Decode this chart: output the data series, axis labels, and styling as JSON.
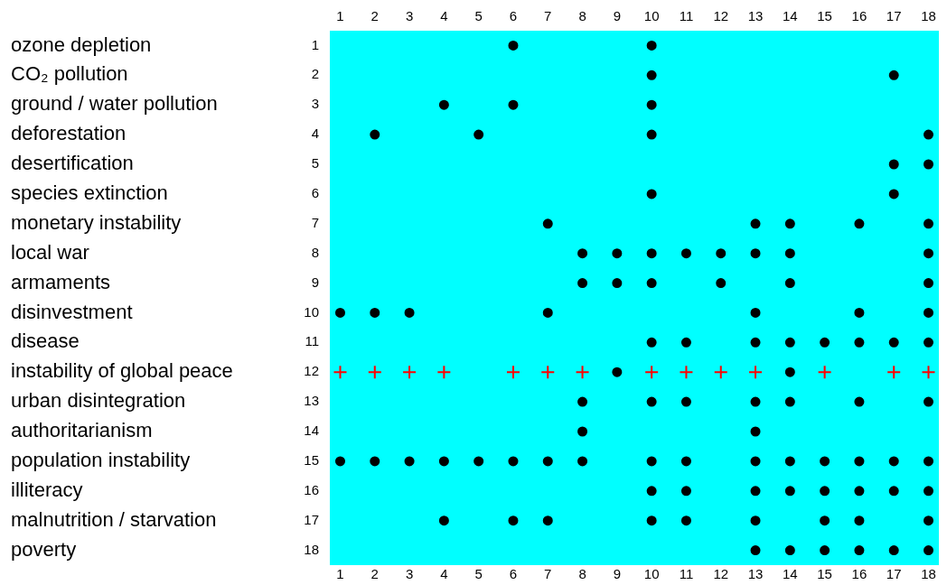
{
  "chart_data": {
    "type": "scatter",
    "xlim": [
      0.7,
      18.3
    ],
    "xticks": [
      1,
      2,
      3,
      4,
      5,
      6,
      7,
      8,
      9,
      10,
      11,
      12,
      13,
      14,
      15,
      16,
      17,
      18
    ],
    "x2lim": [
      0.7,
      18.3
    ],
    "x2ticks": [
      1,
      2,
      3,
      4,
      5,
      6,
      7,
      8,
      9,
      10,
      11,
      12,
      13,
      14,
      15,
      16,
      17,
      18
    ],
    "ylim": [
      18.5,
      0.5
    ],
    "yticks": [
      1,
      2,
      3,
      4,
      5,
      6,
      7,
      8,
      9,
      10,
      11,
      12,
      13,
      14,
      15,
      16,
      17,
      18
    ],
    "annotations": [
      "ozone depletion",
      "CO₂ pollution",
      "ground / water pollution",
      "deforestation",
      "desertification",
      "species extinction",
      "monetary instability",
      "local war",
      "armaments",
      "disinvestment",
      "disease",
      "instability of global peace",
      "urban disintegration",
      "authoritarianism",
      "population instability",
      "illiteracy",
      "malnutrition / starvation",
      "poverty"
    ],
    "legend": false,
    "series": [
      {
        "color": "#000000",
        "marker": "circle",
        "x": [
          6,
          10,
          10,
          17,
          4,
          6,
          10,
          2,
          5,
          10,
          18,
          17,
          18,
          10,
          17,
          7,
          13,
          14,
          16,
          18,
          8,
          9,
          10,
          11,
          12,
          13,
          14,
          18,
          8,
          9,
          10,
          12,
          14,
          18,
          1,
          2,
          3,
          7,
          13,
          16,
          18,
          10,
          11,
          13,
          14,
          15,
          16,
          17,
          18,
          9,
          14,
          8,
          10,
          11,
          13,
          14,
          16,
          18,
          8,
          13,
          1,
          2,
          3,
          4,
          5,
          6,
          7,
          8,
          10,
          11,
          13,
          14,
          15,
          16,
          17,
          18,
          10,
          11,
          13,
          14,
          15,
          16,
          17,
          18,
          4,
          6,
          7,
          10,
          11,
          13,
          15,
          16,
          18,
          13,
          14,
          15,
          16,
          17,
          18
        ],
        "values": [
          1,
          1,
          2,
          2,
          3,
          3,
          3,
          4,
          4,
          4,
          4,
          5,
          5,
          6,
          6,
          7,
          7,
          7,
          7,
          7,
          8,
          8,
          8,
          8,
          8,
          8,
          8,
          8,
          9,
          9,
          9,
          9,
          9,
          9,
          10,
          10,
          10,
          10,
          10,
          10,
          10,
          11,
          11,
          11,
          11,
          11,
          11,
          11,
          11,
          12,
          12,
          13,
          13,
          13,
          13,
          13,
          13,
          13,
          14,
          14,
          15,
          15,
          15,
          15,
          15,
          15,
          15,
          15,
          15,
          15,
          15,
          15,
          15,
          15,
          15,
          15,
          16,
          16,
          16,
          16,
          16,
          16,
          16,
          16,
          17,
          17,
          17,
          17,
          17,
          17,
          17,
          17,
          17,
          18,
          18,
          18,
          18,
          18,
          18
        ]
      },
      {
        "color": "#ff0000",
        "marker": "cross",
        "x": [
          1,
          2,
          3,
          4,
          6,
          7,
          8,
          10,
          11,
          12,
          13,
          15,
          17,
          18
        ],
        "values": [
          12,
          12,
          12,
          12,
          12,
          12,
          12,
          12,
          12,
          12,
          12,
          12,
          12,
          12
        ]
      }
    ]
  }
}
